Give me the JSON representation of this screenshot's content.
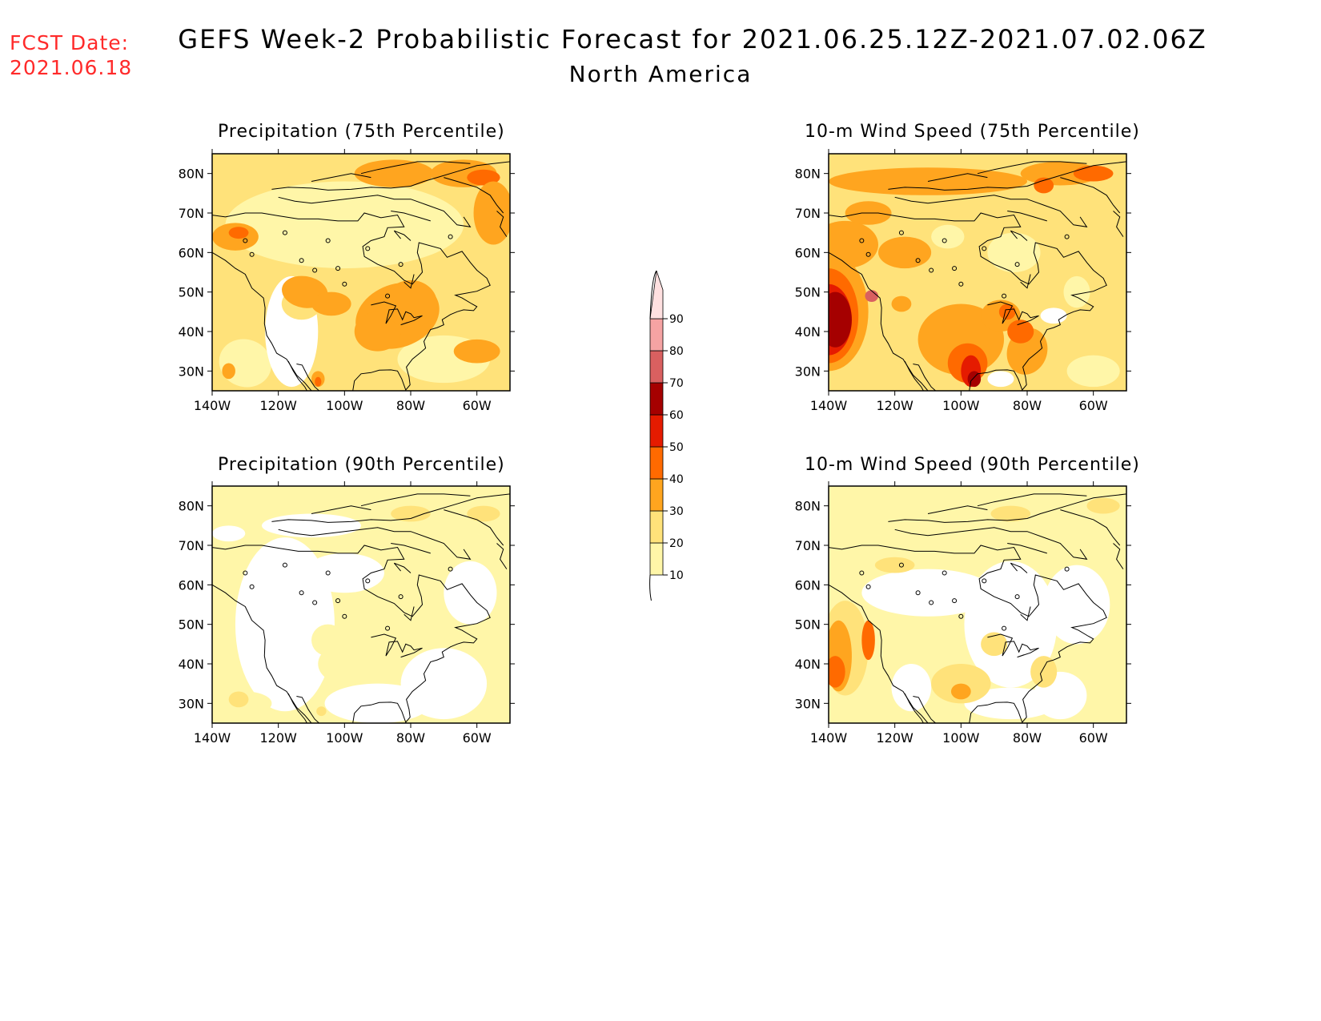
{
  "fcst": {
    "line1": "FCST Date:",
    "line2": "2021.06.18"
  },
  "title": {
    "line1": "GEFS Week-2 Probabilistic Forecast for 2021.06.25.12Z-2021.07.02.06Z",
    "line2": "North America"
  },
  "lat_labels": [
    "80N",
    "70N",
    "60N",
    "50N",
    "40N",
    "30N"
  ],
  "lon_labels": [
    "140W",
    "120W",
    "100W",
    "80W",
    "60W"
  ],
  "panels": [
    {
      "id": "precip75",
      "title": "Precipitation (75th Percentile)"
    },
    {
      "id": "wind75",
      "title": "10-m Wind Speed (75th Percentile)"
    },
    {
      "id": "precip90",
      "title": "Precipitation (90th Percentile)"
    },
    {
      "id": "wind90",
      "title": "10-m Wind Speed (90th Percentile)"
    }
  ],
  "colorbar": {
    "levels": [
      "10",
      "20",
      "30",
      "40",
      "50",
      "60",
      "70",
      "80",
      "90"
    ],
    "colors": [
      "#fff6a8",
      "#ffe27a",
      "#ffa51f",
      "#ff6a00",
      "#e51b00",
      "#a50000",
      "#d96060",
      "#f5a3a3",
      "#ffe0e0"
    ]
  }
}
